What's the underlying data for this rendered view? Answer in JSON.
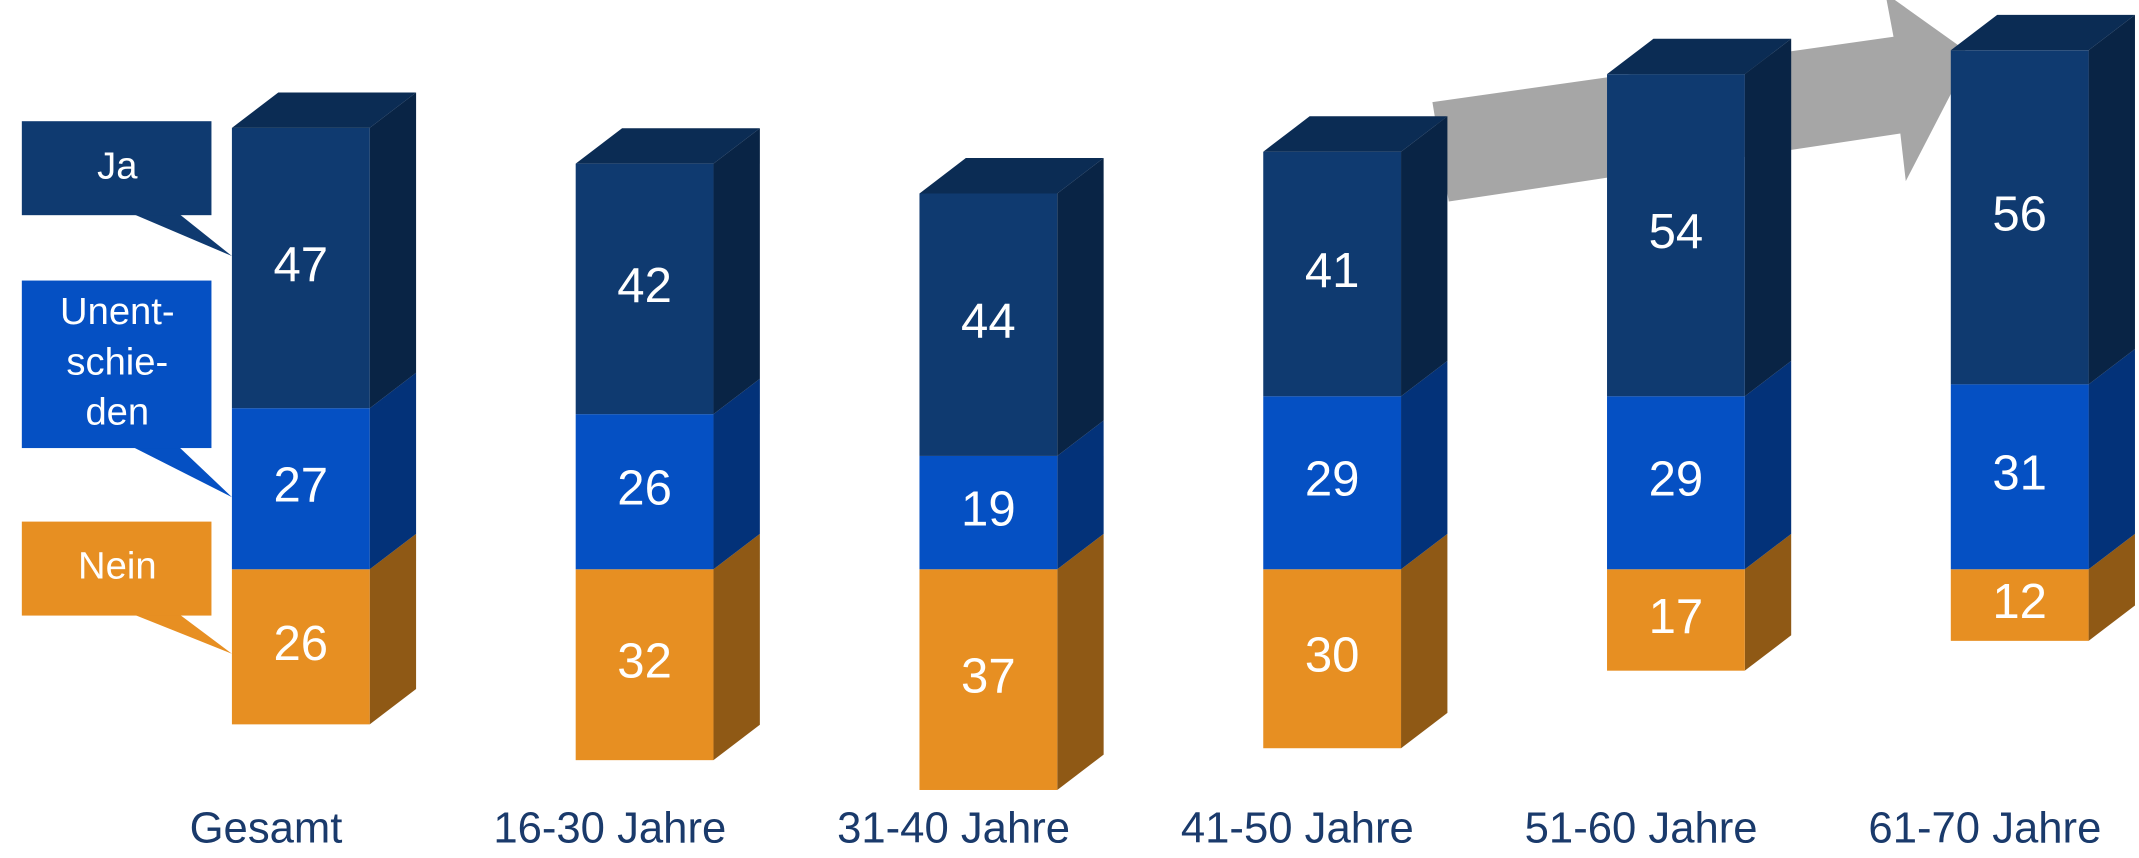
{
  "chart_data": {
    "type": "bar",
    "stacked": true,
    "categories": [
      "Gesamt",
      "16-30 Jahre",
      "31-40 Jahre",
      "41-50 Jahre",
      "51-60 Jahre",
      "61-70 Jahre"
    ],
    "series": [
      {
        "name": "Ja",
        "color": "#0f3a70",
        "values": [
          47,
          42,
          44,
          41,
          54,
          56
        ]
      },
      {
        "name": "Unent-schie-den",
        "color": "#0550c3",
        "values": [
          27,
          26,
          19,
          29,
          29,
          31
        ]
      },
      {
        "name": "Nein",
        "color": "#e78f22",
        "values": [
          26,
          32,
          37,
          30,
          17,
          12
        ]
      }
    ]
  }
}
